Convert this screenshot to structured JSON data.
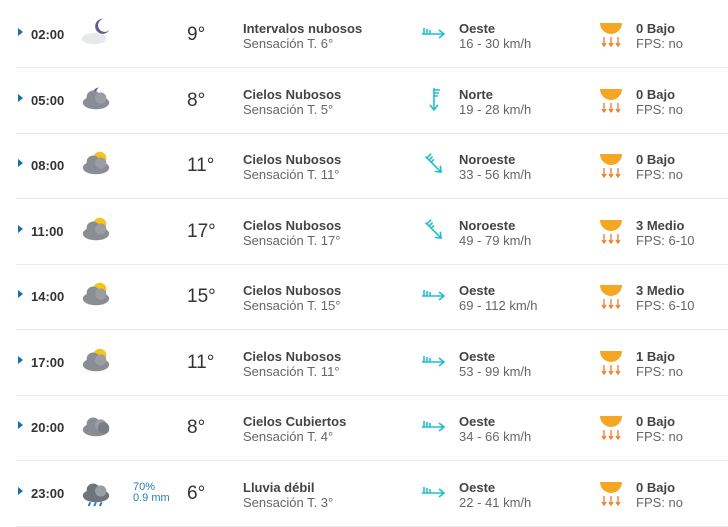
{
  "colors": {
    "accent": "#1a6fa8",
    "wind": "#1fbfcf",
    "uv": "#f5a623",
    "rain": "#2a7bbf"
  },
  "rows": [
    {
      "time": "02:00",
      "icon": "moon-cloud",
      "temp": "9°",
      "desc": "Intervalos nubosos",
      "feel": "Sensación T. 6°",
      "wind_dir": "Oeste",
      "wind_speed": "16 - 30 km/h",
      "uv": "0 Bajo",
      "fps": "FPS: no"
    },
    {
      "time": "05:00",
      "icon": "moon-clouds",
      "temp": "8°",
      "desc": "Cielos Nubosos",
      "feel": "Sensación T. 5°",
      "wind_dir": "Norte",
      "wind_speed": "19 - 28 km/h",
      "uv": "0 Bajo",
      "fps": "FPS: no"
    },
    {
      "time": "08:00",
      "icon": "sun-clouds",
      "temp": "11°",
      "desc": "Cielos Nubosos",
      "feel": "Sensación T. 11°",
      "wind_dir": "Noroeste",
      "wind_speed": "33 - 56 km/h",
      "uv": "0 Bajo",
      "fps": "FPS: no"
    },
    {
      "time": "11:00",
      "icon": "sun-clouds",
      "temp": "17°",
      "desc": "Cielos Nubosos",
      "feel": "Sensación T. 17°",
      "wind_dir": "Noroeste",
      "wind_speed": "49 - 79 km/h",
      "uv": "3 Medio",
      "fps": "FPS: 6-10"
    },
    {
      "time": "14:00",
      "icon": "sun-clouds",
      "temp": "15°",
      "desc": "Cielos Nubosos",
      "feel": "Sensación T. 15°",
      "wind_dir": "Oeste",
      "wind_speed": "69 - 112 km/h",
      "uv": "3 Medio",
      "fps": "FPS: 6-10"
    },
    {
      "time": "17:00",
      "icon": "sun-clouds",
      "temp": "11°",
      "desc": "Cielos Nubosos",
      "feel": "Sensación T. 11°",
      "wind_dir": "Oeste",
      "wind_speed": "53 - 99 km/h",
      "uv": "1 Bajo",
      "fps": "FPS: no"
    },
    {
      "time": "20:00",
      "icon": "overcast",
      "temp": "8°",
      "desc": "Cielos Cubiertos",
      "feel": "Sensación T. 4°",
      "wind_dir": "Oeste",
      "wind_speed": "34 - 66 km/h",
      "uv": "0 Bajo",
      "fps": "FPS: no"
    },
    {
      "time": "23:00",
      "icon": "rain-cloud",
      "rain_prob": "70%",
      "rain_mm": "0.9 mm",
      "temp": "6°",
      "desc": "Lluvia débil",
      "feel": "Sensación T. 3°",
      "wind_dir": "Oeste",
      "wind_speed": "22 - 41 km/h",
      "uv": "0 Bajo",
      "fps": "FPS: no"
    }
  ]
}
